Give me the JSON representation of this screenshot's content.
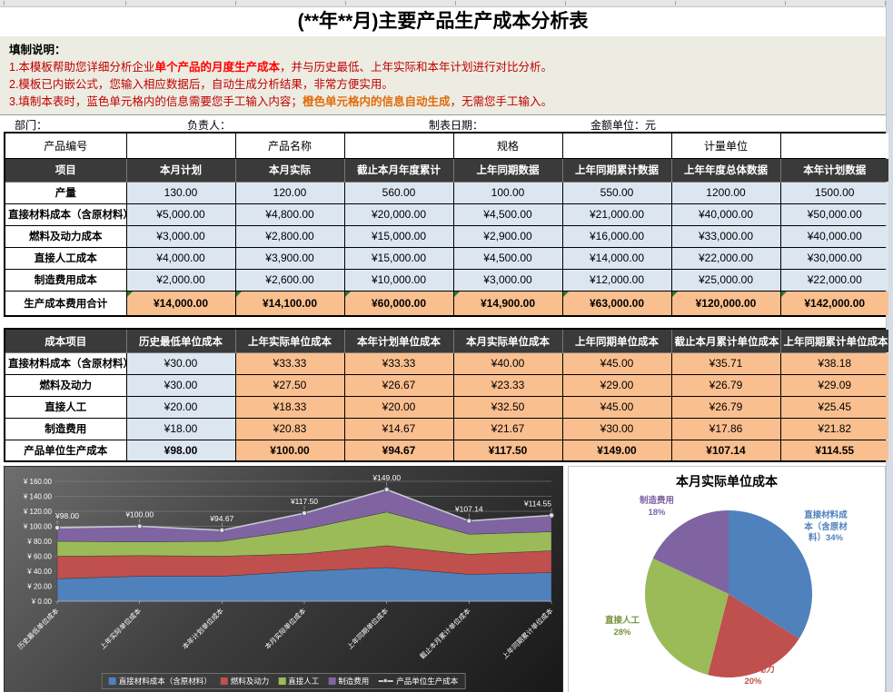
{
  "title": "(**年**月)主要产品生产成本分析表",
  "instructions": {
    "heading": "填制说明：",
    "l1a": "1.本模板帮助您详细分析企业",
    "l1b": "单个产品的月度生产成本",
    "l1c": "，并与历史最低、上年实际和本年计划进行对比分析。",
    "l2": "2.模板已内嵌公式，您输入相应数据后，自动生成分析结果，非常方便实用。",
    "l3a": "3.填制本表时，蓝色单元格内的信息需要您手工输入内容；",
    "l3b": "橙色单元格内的信息自动生成",
    "l3c": "，无需您手工输入。"
  },
  "meta": {
    "department": "部门：",
    "manager": "负责人：",
    "date": "制表日期：",
    "unit": "金额单位：元"
  },
  "table1": {
    "product_row": [
      "产品编号",
      "",
      "产品名称",
      "",
      "规格",
      "",
      "计量单位",
      ""
    ],
    "headers": [
      "项目",
      "本月计划",
      "本月实际",
      "截止本月年度累计",
      "上年同期数据",
      "上年同期累计数据",
      "上年年度总体数据",
      "本年计划数据"
    ],
    "rows": [
      {
        "label": "产量",
        "cells": [
          "130.00",
          "120.00",
          "560.00",
          "100.00",
          "550.00",
          "1200.00",
          "1500.00"
        ]
      },
      {
        "label": "直接材料成本（含原材料）",
        "cells": [
          "¥5,000.00",
          "¥4,800.00",
          "¥20,000.00",
          "¥4,500.00",
          "¥21,000.00",
          "¥40,000.00",
          "¥50,000.00"
        ]
      },
      {
        "label": "燃料及动力成本",
        "cells": [
          "¥3,000.00",
          "¥2,800.00",
          "¥15,000.00",
          "¥2,900.00",
          "¥16,000.00",
          "¥33,000.00",
          "¥40,000.00"
        ]
      },
      {
        "label": "直接人工成本",
        "cells": [
          "¥4,000.00",
          "¥3,900.00",
          "¥15,000.00",
          "¥4,500.00",
          "¥14,000.00",
          "¥22,000.00",
          "¥30,000.00"
        ]
      },
      {
        "label": "制造费用成本",
        "cells": [
          "¥2,000.00",
          "¥2,600.00",
          "¥10,000.00",
          "¥3,000.00",
          "¥12,000.00",
          "¥25,000.00",
          "¥22,000.00"
        ]
      }
    ],
    "total_row": {
      "label": "生产成本费用合计",
      "cells": [
        "¥14,000.00",
        "¥14,100.00",
        "¥60,000.00",
        "¥14,900.00",
        "¥63,000.00",
        "¥120,000.00",
        "¥142,000.00"
      ]
    }
  },
  "table2": {
    "headers": [
      "成本项目",
      "历史最低单位成本",
      "上年实际单位成本",
      "本年计划单位成本",
      "本月实际单位成本",
      "上年同期单位成本",
      "截止本月累计单位成本",
      "上年同期累计单位成本"
    ],
    "rows": [
      {
        "label": "直接材料成本（含原材料）",
        "cells": [
          "¥30.00",
          "¥33.33",
          "¥33.33",
          "¥40.00",
          "¥45.00",
          "¥35.71",
          "¥38.18"
        ]
      },
      {
        "label": "燃料及动力",
        "cells": [
          "¥30.00",
          "¥27.50",
          "¥26.67",
          "¥23.33",
          "¥29.00",
          "¥26.79",
          "¥29.09"
        ]
      },
      {
        "label": "直接人工",
        "cells": [
          "¥20.00",
          "¥18.33",
          "¥20.00",
          "¥32.50",
          "¥45.00",
          "¥26.79",
          "¥25.45"
        ]
      },
      {
        "label": "制造费用",
        "cells": [
          "¥18.00",
          "¥20.83",
          "¥14.67",
          "¥21.67",
          "¥30.00",
          "¥17.86",
          "¥21.82"
        ]
      },
      {
        "label": "产品单位生产成本",
        "cells": [
          "¥98.00",
          "¥100.00",
          "¥94.67",
          "¥117.50",
          "¥149.00",
          "¥107.14",
          "¥114.55"
        ]
      }
    ]
  },
  "chart_data": [
    {
      "type": "area",
      "stacked": true,
      "title": "",
      "categories": [
        "历史最低单位成本",
        "上年实际单位成本",
        "本年计划单位成本",
        "本月实际单位成本",
        "上年同期单位成本",
        "截止本月累计单位成本",
        "上年同期累计单位成本"
      ],
      "series": [
        {
          "name": "直接材料成本（含原材料）",
          "color": "#4F81BD",
          "values": [
            30,
            33.33,
            33.33,
            40,
            45,
            35.71,
            38.18
          ]
        },
        {
          "name": "燃料及动力",
          "color": "#C0504D",
          "values": [
            30,
            27.5,
            26.67,
            23.33,
            29,
            26.79,
            29.09
          ]
        },
        {
          "name": "直接人工",
          "color": "#9BBB59",
          "values": [
            20,
            18.33,
            20,
            32.5,
            45,
            26.79,
            25.45
          ]
        },
        {
          "name": "制造费用",
          "color": "#8064A2",
          "values": [
            18,
            20.83,
            14.67,
            21.67,
            30,
            17.86,
            21.82
          ]
        }
      ],
      "line_series": {
        "name": "产品单位生产成本",
        "color": "#C6CBD4",
        "values": [
          98,
          100,
          94.67,
          117.5,
          149,
          107.14,
          114.55
        ],
        "labels": [
          "¥98.00",
          "¥100.00",
          "¥94.67",
          "¥117.50",
          "¥149.00",
          "¥107.14",
          "¥114.55"
        ]
      },
      "ylim": [
        0,
        160
      ],
      "ytick_step": 20,
      "ytick_labels": [
        "¥ 0.00",
        "¥ 20.00",
        "¥ 40.00",
        "¥ 60.00",
        "¥ 80.00",
        "¥ 100.00",
        "¥ 120.00",
        "¥ 140.00",
        "¥ 160.00"
      ],
      "grid": true,
      "legend_position": "bottom"
    },
    {
      "type": "pie",
      "title": "本月实际单位成本",
      "labels": [
        "直接材料成本（含原材料）",
        "燃料及动力",
        "直接人工",
        "制造费用"
      ],
      "values": [
        34,
        20,
        28,
        18
      ],
      "colors": [
        "#4F81BD",
        "#C0504D",
        "#9BBB59",
        "#8064A2"
      ],
      "display_labels": [
        {
          "lines": [
            "直接材料成",
            "本（含原材",
            "料）34%"
          ],
          "color": "#4F81BD"
        },
        {
          "lines": [
            "燃料及动力",
            "20%"
          ],
          "color": "#C0504D"
        },
        {
          "lines": [
            "直接人工",
            "28%"
          ],
          "color": "#76923C"
        },
        {
          "lines": [
            "制造费用",
            "18%"
          ],
          "color": "#8064A2"
        }
      ]
    }
  ],
  "colors": {
    "input_cell": "#DCE6F1",
    "auto_cell": "#FABF8F",
    "header_bg": "#3A3A3A",
    "instruction_text": "#C00000"
  }
}
